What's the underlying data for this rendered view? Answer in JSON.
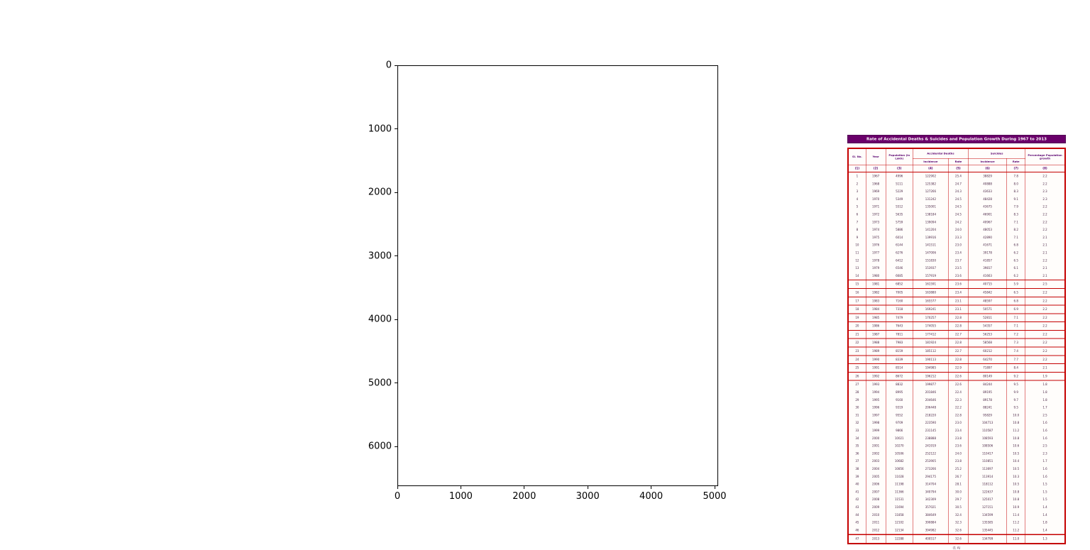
{
  "figure": {
    "x_ticks": [
      "0",
      "1000",
      "2000",
      "3000",
      "4000",
      "5000"
    ],
    "y_ticks": [
      "0",
      "1000",
      "2000",
      "3000",
      "4000",
      "5000",
      "6000"
    ]
  },
  "colors": {
    "title_bg": "#6a006a",
    "table_border": "#c40000",
    "header_text": "#5a006e",
    "cell_text": "#4a2545"
  },
  "chart_data": {
    "type": "table",
    "title": "Rate of Accidental Deaths & Suicides and Population Growth During 1967 to 2013",
    "caption": "(1 A)",
    "header": {
      "sl_no": "Sl. No.",
      "year": "Year",
      "population": "Population (in Lakh)",
      "accidental_deaths": "Accidental Deaths",
      "suicides": "Suicides",
      "incidence": "Incidence",
      "rate": "Rate",
      "pct_growth": "Percentage Population growth"
    },
    "column_numbers": [
      "(1)",
      "(2)",
      "(3)",
      "(4)",
      "(5)",
      "(6)",
      "(7)",
      "(8)"
    ],
    "columns": [
      "Sl. No.",
      "Year",
      "Population (in Lakh)",
      "Accidental Deaths - Incidence",
      "Accidental Deaths - Rate",
      "Suicides - Incidence",
      "Suicides - Rate",
      "Percentage Population growth"
    ],
    "axes": {
      "x_range": [
        0,
        5050
      ],
      "y_range": [
        6630,
        0
      ],
      "grid": false
    },
    "rows": [
      [
        "1",
        "1967",
        "4996",
        "122902",
        "25.4",
        "38829",
        "7.8",
        "2.2"
      ],
      [
        "2",
        "1968",
        "5111",
        "125382",
        "24.7",
        "40888",
        "8.0",
        "2.2"
      ],
      [
        "3",
        "1969",
        "5229",
        "127266",
        "24.3",
        "43633",
        "8.3",
        "2.3"
      ],
      [
        "4",
        "1970",
        "5349",
        "131242",
        "24.5",
        "48428",
        "9.1",
        "2.3"
      ],
      [
        "5",
        "1971",
        "5512",
        "135001",
        "24.5",
        "43675",
        "7.9",
        "2.2"
      ],
      [
        "6",
        "1972",
        "5635",
        "138184",
        "24.5",
        "46901",
        "8.3",
        "2.2"
      ],
      [
        "7",
        "1973",
        "5759",
        "139094",
        "24.2",
        "40967",
        "7.1",
        "2.2"
      ],
      [
        "8",
        "1974",
        "5886",
        "141204",
        "24.0",
        "48053",
        "8.2",
        "2.2"
      ],
      [
        "9",
        "1975",
        "6014",
        "139916",
        "23.3",
        "42890",
        "7.1",
        "2.1"
      ],
      [
        "10",
        "1976",
        "6144",
        "141511",
        "23.0",
        "41671",
        "6.8",
        "2.1"
      ],
      [
        "11",
        "1977",
        "6276",
        "147006",
        "23.4",
        "39178",
        "6.2",
        "2.1"
      ],
      [
        "12",
        "1978",
        "6412",
        "151830",
        "23.7",
        "41857",
        "6.5",
        "2.2"
      ],
      [
        "13",
        "1979",
        "6546",
        "153937",
        "23.5",
        "39817",
        "6.1",
        "2.1"
      ],
      [
        "14",
        "1980",
        "6685",
        "157919",
        "23.6",
        "41663",
        "6.2",
        "2.1"
      ],
      [
        "15",
        "1981",
        "6852",
        "161591",
        "23.6",
        "40715",
        "5.9",
        "2.5"
      ],
      [
        "16",
        "1982",
        "7005",
        "163880",
        "23.4",
        "45842",
        "6.5",
        "2.2"
      ],
      [
        "17",
        "1983",
        "7160",
        "165577",
        "23.1",
        "48597",
        "6.8",
        "2.2"
      ],
      [
        "18",
        "1984",
        "7318",
        "169241",
        "23.1",
        "50571",
        "6.9",
        "2.2"
      ],
      [
        "19",
        "1985",
        "7479",
        "170257",
        "22.8",
        "52811",
        "7.1",
        "2.2"
      ],
      [
        "20",
        "1986",
        "7643",
        "174055",
        "22.8",
        "54357",
        "7.1",
        "2.2"
      ],
      [
        "21",
        "1987",
        "7811",
        "177412",
        "22.7",
        "56253",
        "7.2",
        "2.2"
      ],
      [
        "22",
        "1988",
        "7983",
        "181924",
        "22.8",
        "58568",
        "7.3",
        "2.2"
      ],
      [
        "23",
        "1989",
        "8159",
        "185112",
        "22.7",
        "60212",
        "7.4",
        "2.2"
      ],
      [
        "24",
        "1990",
        "8339",
        "190113",
        "22.8",
        "64270",
        "7.7",
        "2.2"
      ],
      [
        "25",
        "1991",
        "8514",
        "194985",
        "22.9",
        "71897",
        "8.4",
        "2.1"
      ],
      [
        "26",
        "1992",
        "8672",
        "196212",
        "22.6",
        "80149",
        "9.2",
        "1.9"
      ],
      [
        "27",
        "1993",
        "8832",
        "199877",
        "22.6",
        "84244",
        "9.5",
        "1.8"
      ],
      [
        "28",
        "1994",
        "8995",
        "201846",
        "22.4",
        "89195",
        "9.9",
        "1.8"
      ],
      [
        "29",
        "1995",
        "9160",
        "204646",
        "22.3",
        "89178",
        "9.7",
        "1.8"
      ],
      [
        "30",
        "1996",
        "9319",
        "206448",
        "22.2",
        "88241",
        "9.5",
        "1.7"
      ],
      [
        "31",
        "1997",
        "9552",
        "218220",
        "22.8",
        "95829",
        "10.0",
        "2.5"
      ],
      [
        "32",
        "1998",
        "9709",
        "223590",
        "23.0",
        "104713",
        "10.8",
        "1.6"
      ],
      [
        "33",
        "1999",
        "9866",
        "231145",
        "23.4",
        "110587",
        "11.2",
        "1.6"
      ],
      [
        "34",
        "2000",
        "10021",
        "238888",
        "23.8",
        "108593",
        "10.8",
        "1.6"
      ],
      [
        "35",
        "2001",
        "10270",
        "241919",
        "23.6",
        "108506",
        "10.6",
        "2.5"
      ],
      [
        "36",
        "2002",
        "10506",
        "252122",
        "24.0",
        "110417",
        "10.5",
        "2.3"
      ],
      [
        "37",
        "2003",
        "10682",
        "253905",
        "23.8",
        "110851",
        "10.4",
        "1.7"
      ],
      [
        "38",
        "2004",
        "10856",
        "273266",
        "25.2",
        "113697",
        "10.5",
        "1.6"
      ],
      [
        "39",
        "2005",
        "11028",
        "294175",
        "26.7",
        "113914",
        "10.3",
        "1.6"
      ],
      [
        "40",
        "2006",
        "11198",
        "314704",
        "28.1",
        "118112",
        "10.5",
        "1.5"
      ],
      [
        "41",
        "2007",
        "11366",
        "340794",
        "30.0",
        "122637",
        "10.8",
        "1.5"
      ],
      [
        "42",
        "2008",
        "11531",
        "342309",
        "29.7",
        "125017",
        "10.8",
        "1.5"
      ],
      [
        "43",
        "2009",
        "11694",
        "357021",
        "30.5",
        "127151",
        "10.9",
        "1.4"
      ],
      [
        "44",
        "2010",
        "11858",
        "384649",
        "32.4",
        "134599",
        "11.4",
        "1.4"
      ],
      [
        "45",
        "2011",
        "12102",
        "390884",
        "32.3",
        "135585",
        "11.2",
        "1.8"
      ],
      [
        "46",
        "2012",
        "12134",
        "394982",
        "32.6",
        "135445",
        "11.2",
        "1.4"
      ],
      [
        "47",
        "2013",
        "12288",
        "400517",
        "32.6",
        "134799",
        "11.0",
        "1.3"
      ]
    ]
  }
}
